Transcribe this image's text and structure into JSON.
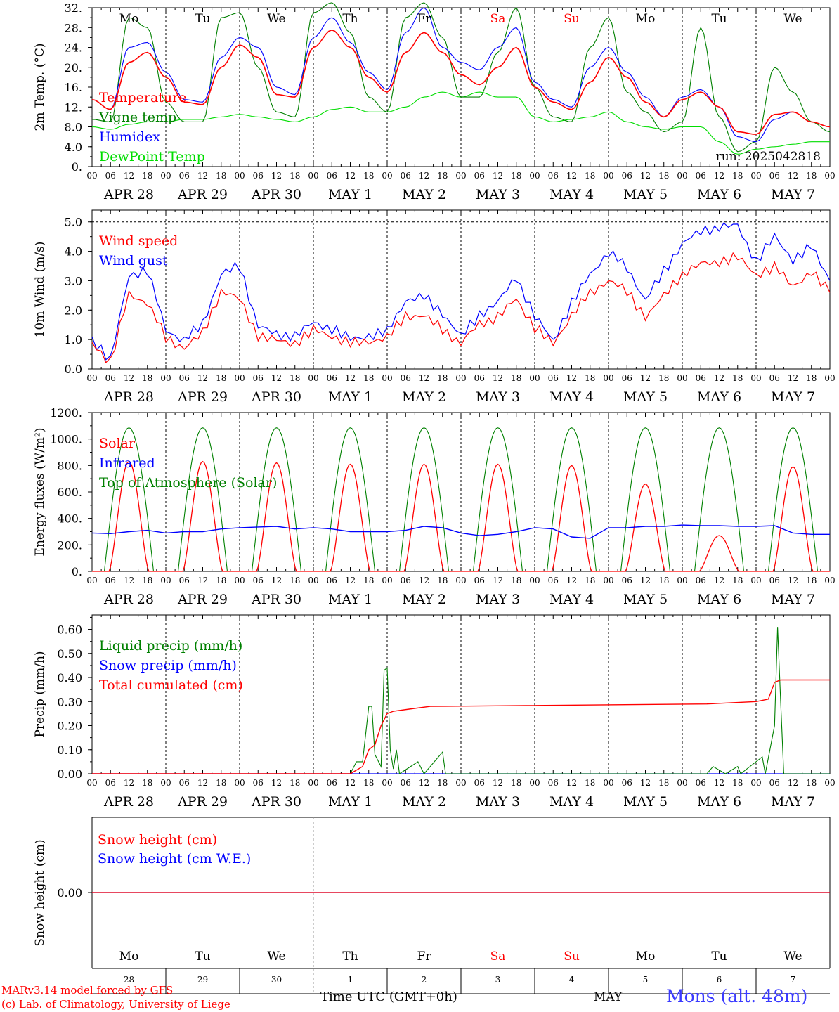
{
  "days": [
    "Mo",
    "Tu",
    "We",
    "Th",
    "Fr",
    "Sa",
    "Su",
    "Mo",
    "Tu",
    "We"
  ],
  "weekend_days": [
    5,
    6
  ],
  "date_labels": [
    "APR 28",
    "APR 29",
    "APR 30",
    "MAY  1",
    "MAY  2",
    "MAY  3",
    "MAY  4",
    "MAY  5",
    "MAY  6",
    "MAY  7"
  ],
  "hour_ticks": [
    "00",
    "06",
    "12",
    "18"
  ],
  "bottom_day_numbers": [
    "28",
    "29",
    "30",
    "1",
    "2",
    "3",
    "4",
    "5",
    "6",
    "7"
  ],
  "colors": {
    "red": "#ff0000",
    "green": "#008000",
    "blue": "#0000ff",
    "lime": "#00dd00",
    "grid": "#000000",
    "weekend": "#ff0000"
  },
  "footer": {
    "model_line": "MARv3.14 model forced by GFS",
    "copyright_line": "(c) Lab. of Climatology, University of Liege",
    "time_label": "Time UTC (GMT+0h)",
    "month_label": "MAY",
    "station": "Mons (alt. 48m)"
  },
  "run_label": "run: 2025042818",
  "chart_data": [
    {
      "type": "line",
      "id": "temperature",
      "ylabel": "2m Temp. (°C)",
      "ylim": [
        0,
        32
      ],
      "yticks": [
        "0.",
        "4.0",
        "8.0",
        "12.",
        "16.",
        "20.",
        "24.",
        "28.",
        "32."
      ],
      "ytick_values": [
        0,
        4,
        8,
        12,
        16,
        20,
        24,
        28,
        32
      ],
      "legend": [
        "Temperature",
        "Vigne temp",
        "Humidex",
        "DewPoint Temp"
      ],
      "x_hours": [
        0,
        6,
        12,
        18,
        24,
        30,
        36,
        42,
        48,
        54,
        60,
        66,
        72,
        78,
        84,
        90,
        96,
        102,
        108,
        114,
        120,
        126,
        132,
        138,
        144,
        150,
        156,
        162,
        168,
        174,
        180,
        186,
        192,
        198,
        204,
        210,
        216,
        222,
        228,
        234,
        240
      ],
      "series": [
        {
          "name": "Temperature",
          "color": "red",
          "values": [
            13.5,
            11.5,
            21,
            23,
            18,
            13,
            12.5,
            20,
            24.5,
            22,
            14.5,
            14,
            24,
            27.5,
            24,
            18,
            15,
            23,
            27,
            23,
            18.5,
            16.5,
            20,
            24,
            16,
            13,
            11.5,
            17,
            22,
            18,
            13,
            10,
            13.5,
            15,
            12,
            7,
            6.5,
            10.5,
            11,
            9,
            8
          ]
        },
        {
          "name": "Vigne temp",
          "color": "green",
          "values": [
            9.5,
            9,
            30,
            28,
            13,
            9,
            9,
            30,
            31,
            20,
            11,
            10,
            31,
            33,
            27,
            14,
            11,
            30,
            33,
            26,
            14,
            14,
            23,
            32,
            16,
            10,
            9,
            24,
            30,
            15,
            11,
            7,
            9,
            28,
            10,
            3,
            5,
            20,
            15,
            9,
            7
          ]
        },
        {
          "name": "Humidex",
          "color": "blue",
          "values": [
            13.5,
            11.5,
            24,
            25,
            19,
            13.5,
            13,
            22,
            26,
            24,
            16,
            14.5,
            26,
            30,
            25,
            19,
            15.5,
            27,
            32,
            24,
            21,
            19.5,
            24,
            28,
            17,
            13.5,
            12,
            20,
            24,
            19,
            14,
            10,
            14,
            15.5,
            12,
            6,
            5,
            9.5,
            11,
            9,
            8
          ]
        },
        {
          "name": "DewPoint Temp",
          "color": "lime",
          "values": [
            8,
            7.5,
            8.5,
            9,
            9,
            9.5,
            9.5,
            10,
            10.5,
            10,
            9.5,
            9,
            10,
            11.5,
            12,
            11,
            11,
            12,
            14,
            15,
            14,
            15,
            14,
            14,
            10,
            9,
            9.5,
            10,
            11,
            9,
            8,
            7.5,
            8,
            8,
            5,
            2.5,
            3.5,
            4,
            4.5,
            5,
            5
          ]
        }
      ]
    },
    {
      "type": "line",
      "id": "wind",
      "ylabel": "10m Wind (m/s)",
      "ylim": [
        0,
        5.4
      ],
      "yticks": [
        "0.0",
        "1.0",
        "2.0",
        "3.0",
        "4.0",
        "5.0"
      ],
      "ytick_values": [
        0,
        1,
        2,
        3,
        4,
        5
      ],
      "legend": [
        "Wind speed",
        "Wind gust"
      ],
      "x_hours": [
        0,
        6,
        12,
        18,
        24,
        30,
        36,
        42,
        48,
        54,
        60,
        66,
        72,
        78,
        84,
        90,
        96,
        102,
        108,
        114,
        120,
        126,
        132,
        138,
        144,
        150,
        156,
        162,
        168,
        174,
        180,
        186,
        192,
        198,
        204,
        210,
        216,
        222,
        228,
        234,
        240
      ],
      "series": [
        {
          "name": "Wind speed",
          "color": "red",
          "values": [
            0.9,
            0.2,
            2.5,
            2.2,
            1.0,
            0.7,
            1.2,
            2.7,
            2.4,
            1.2,
            1.0,
            0.9,
            1.3,
            1.1,
            0.8,
            0.9,
            1.0,
            1.8,
            1.8,
            1.4,
            0.9,
            1.6,
            1.8,
            2.4,
            1.4,
            0.8,
            1.8,
            2.5,
            3.0,
            2.6,
            1.8,
            2.5,
            3.3,
            3.6,
            3.7,
            3.8,
            3.2,
            3.4,
            2.8,
            3.2,
            2.6
          ]
        },
        {
          "name": "Wind gust",
          "color": "blue",
          "values": [
            1.1,
            0.3,
            3.2,
            3.3,
            1.3,
            0.9,
            1.5,
            3.2,
            3.5,
            1.5,
            1.2,
            1.2,
            1.6,
            1.4,
            1.0,
            1.1,
            1.2,
            2.3,
            2.4,
            1.9,
            1.1,
            1.9,
            2.3,
            3.2,
            1.8,
            1.0,
            2.2,
            3.2,
            3.9,
            3.4,
            2.3,
            3.3,
            4.3,
            4.7,
            4.9,
            4.9,
            3.7,
            4.5,
            3.7,
            4.1,
            3.0
          ]
        }
      ]
    },
    {
      "type": "line",
      "id": "energy",
      "ylabel": "Energy fluxes (W/m²)",
      "ylim": [
        0,
        1200
      ],
      "yticks": [
        "0.",
        "200.",
        "400.",
        "600.",
        "800.",
        "1000.",
        "1200."
      ],
      "ytick_values": [
        0,
        200,
        400,
        600,
        800,
        1000,
        1200
      ],
      "legend": [
        "Solar",
        "Infrared",
        "Top of Atmosphere (Solar)"
      ],
      "solar_peaks": [
        830,
        830,
        820,
        810,
        810,
        810,
        800,
        660,
        270,
        790
      ],
      "toa_peak": 1085,
      "infrared_values": [
        290,
        285,
        300,
        310,
        290,
        300,
        300,
        320,
        330,
        335,
        340,
        320,
        330,
        320,
        300,
        300,
        300,
        310,
        340,
        330,
        290,
        270,
        280,
        300,
        330,
        320,
        260,
        250,
        330,
        330,
        340,
        340,
        350,
        345,
        345,
        340,
        340,
        345,
        290,
        280,
        280
      ],
      "series": [
        {
          "name": "Solar",
          "color": "red"
        },
        {
          "name": "Infrared",
          "color": "blue"
        },
        {
          "name": "Top of Atmosphere (Solar)",
          "color": "green"
        }
      ]
    },
    {
      "type": "line",
      "id": "precip",
      "ylabel": "Precip (mm/h)",
      "ylim": [
        0,
        0.66
      ],
      "yticks": [
        "0.00",
        "0.10",
        "0.20",
        "0.30",
        "0.40",
        "0.50",
        "0.60"
      ],
      "ytick_values": [
        0,
        0.1,
        0.2,
        0.3,
        0.4,
        0.5,
        0.6
      ],
      "legend": [
        "Liquid precip (mm/h)",
        "Snow precip (mm/h)",
        "Total cumulated (cm)"
      ],
      "liquid_points": [
        [
          0,
          0
        ],
        [
          84,
          0
        ],
        [
          86,
          0.05
        ],
        [
          88,
          0.05
        ],
        [
          90,
          0.28
        ],
        [
          91,
          0.28
        ],
        [
          92,
          0.08
        ],
        [
          94,
          0.03
        ],
        [
          95,
          0.43
        ],
        [
          96,
          0.44
        ],
        [
          97,
          0.1
        ],
        [
          98,
          0.02
        ],
        [
          99,
          0.1
        ],
        [
          100,
          0
        ],
        [
          106,
          0.05
        ],
        [
          108,
          0
        ],
        [
          114,
          0.09
        ],
        [
          115,
          0
        ],
        [
          200,
          0
        ],
        [
          202,
          0.03
        ],
        [
          206,
          0
        ],
        [
          210,
          0.03
        ],
        [
          211,
          0
        ],
        [
          218,
          0.07
        ],
        [
          219,
          0
        ],
        [
          222,
          0.2
        ],
        [
          223,
          0.61
        ],
        [
          224,
          0.3
        ],
        [
          225,
          0
        ],
        [
          240,
          0
        ]
      ],
      "cumulated_points": [
        [
          0,
          0
        ],
        [
          84,
          0
        ],
        [
          88,
          0.03
        ],
        [
          90,
          0.1
        ],
        [
          92,
          0.12
        ],
        [
          94,
          0.2
        ],
        [
          96,
          0.25
        ],
        [
          98,
          0.26
        ],
        [
          104,
          0.27
        ],
        [
          110,
          0.28
        ],
        [
          200,
          0.29
        ],
        [
          216,
          0.3
        ],
        [
          220,
          0.31
        ],
        [
          222,
          0.38
        ],
        [
          224,
          0.39
        ],
        [
          240,
          0.39
        ]
      ],
      "series": [
        {
          "name": "Liquid precip (mm/h)",
          "color": "green"
        },
        {
          "name": "Snow precip (mm/h)",
          "color": "blue"
        },
        {
          "name": "Total cumulated (cm)",
          "color": "red"
        }
      ]
    },
    {
      "type": "line",
      "id": "snow",
      "ylabel": "Snow height (cm)",
      "yticks": [
        "0.00"
      ],
      "legend": [
        "Snow height (cm)",
        "Snow height (cm W.E.)"
      ],
      "series": [
        {
          "name": "Snow height (cm)",
          "color": "red",
          "values": [
            0,
            0
          ]
        },
        {
          "name": "Snow height (cm W.E.)",
          "color": "blue",
          "values": [
            0,
            0
          ]
        }
      ]
    }
  ]
}
